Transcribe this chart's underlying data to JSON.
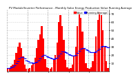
{
  "title": "PV Module/Inverter Performance - Monthly Solar Energy Production Value Running Average",
  "bar_color": "#ff0000",
  "avg_color": "#0000ff",
  "background": "#ffffff",
  "grid_color": "#aaaaaa",
  "values": [
    4,
    3,
    6,
    8,
    14,
    22,
    30,
    35,
    28,
    18,
    8,
    3,
    3,
    4,
    7,
    10,
    16,
    28,
    38,
    45,
    55,
    40,
    15,
    5,
    4,
    3,
    5,
    14,
    20,
    35,
    60,
    68,
    55,
    38,
    14,
    5,
    3,
    4,
    8,
    18,
    30,
    55,
    70,
    65,
    48,
    28,
    10,
    4,
    3,
    5,
    12,
    22,
    42,
    62,
    72,
    68,
    50,
    30,
    12,
    4
  ],
  "running_avg": [
    4,
    3.5,
    4.3,
    5.3,
    7.2,
    9.5,
    12.4,
    15.3,
    17.2,
    16.8,
    15.3,
    13.3,
    11.8,
    10.9,
    10.3,
    10.0,
    10.1,
    11.2,
    13.1,
    15.4,
    18.3,
    19.8,
    19.5,
    18.3,
    17.1,
    16.0,
    15.1,
    15.0,
    15.1,
    16.1,
    18.6,
    21.5,
    23.5,
    24.2,
    23.3,
    21.9,
    20.5,
    19.5,
    18.9,
    19.0,
    19.8,
    21.8,
    24.5,
    26.8,
    27.8,
    27.7,
    26.7,
    25.4,
    24.2,
    23.3,
    22.8,
    22.9,
    23.9,
    25.5,
    27.5,
    29.5,
    30.6,
    30.7,
    30.0,
    29.0
  ],
  "ylim": [
    0,
    75
  ],
  "yticks": [
    10,
    20,
    30,
    40,
    50,
    60,
    70
  ],
  "ytick_labels": [
    "10",
    "20",
    "30",
    "40",
    "50",
    "60",
    "70"
  ],
  "ylabel_fontsize": 3.0,
  "title_fontsize": 2.8,
  "n_bars": 60,
  "legend_labels": [
    "Value",
    "Running Average"
  ],
  "legend_fontsize": 2.5
}
